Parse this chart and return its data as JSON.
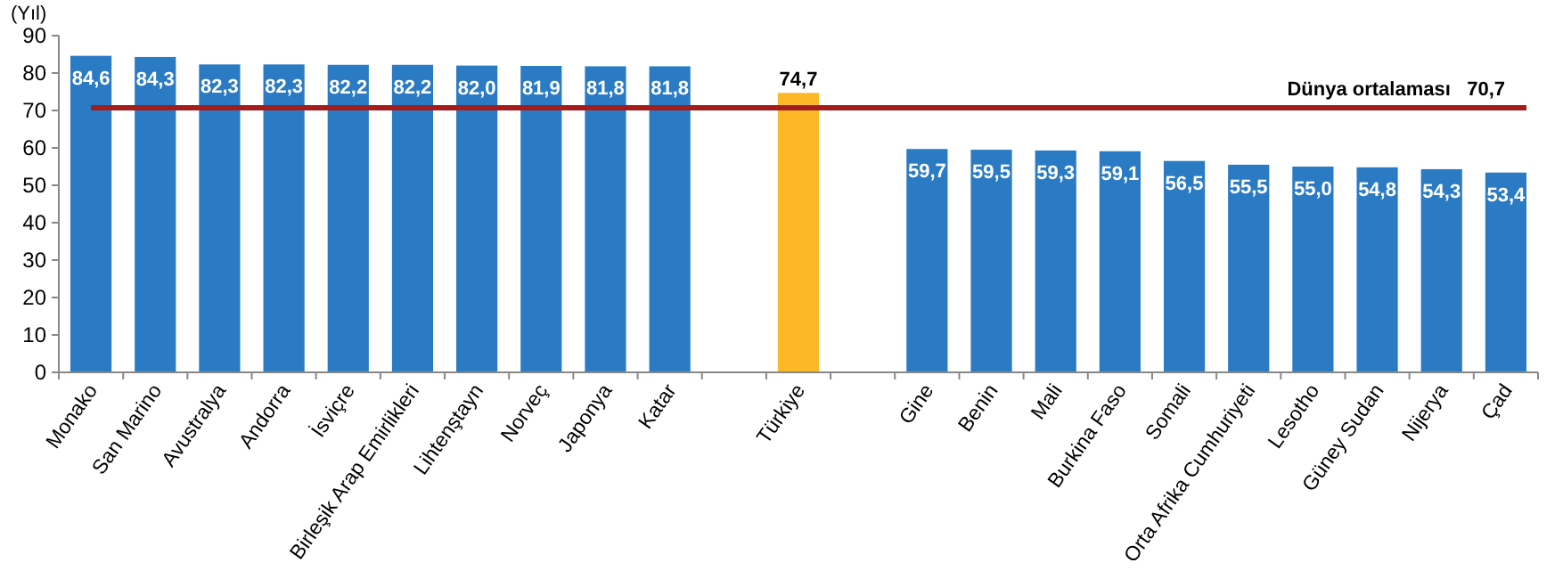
{
  "chart_data": {
    "type": "bar",
    "ylabel": "(Yıl)",
    "categories": [
      "Monako",
      "San Marino",
      "Avustralya",
      "Andorra",
      "İsviçre",
      "Birleşik Arap Emirlikleri",
      "Lihtenştayn",
      "Norveç",
      "Japonya",
      "Katar",
      null,
      "Türkiye",
      null,
      "Gine",
      "Benin",
      "Mali",
      "Burkina Faso",
      "Somali",
      "Orta Afrika Cumhuriyeti",
      "Lesotho",
      "Güney Sudan",
      "Nijerya",
      "Çad"
    ],
    "values": [
      84.6,
      84.3,
      82.3,
      82.3,
      82.2,
      82.2,
      82.0,
      81.9,
      81.8,
      81.8,
      null,
      74.7,
      null,
      59.7,
      59.5,
      59.3,
      59.1,
      56.5,
      55.5,
      55.0,
      54.8,
      54.3,
      53.4
    ],
    "value_labels": [
      "84,6",
      "84,3",
      "82,3",
      "82,3",
      "82,2",
      "82,2",
      "82,0",
      "81,9",
      "81,8",
      "81,8",
      null,
      "74,7",
      null,
      "59,7",
      "59,5",
      "59,3",
      "59,1",
      "56,5",
      "55,5",
      "55,0",
      "54,8",
      "54,3",
      "53,4"
    ],
    "colors": [
      "#2b7bc4",
      "#2b7bc4",
      "#2b7bc4",
      "#2b7bc4",
      "#2b7bc4",
      "#2b7bc4",
      "#2b7bc4",
      "#2b7bc4",
      "#2b7bc4",
      "#2b7bc4",
      "#2b7bc4",
      "#fbb827",
      "#2b7bc4",
      "#2b7bc4",
      "#2b7bc4",
      "#2b7bc4",
      "#2b7bc4",
      "#2b7bc4",
      "#2b7bc4",
      "#2b7bc4",
      "#2b7bc4",
      "#2b7bc4",
      "#2b7bc4"
    ],
    "ylim": [
      0,
      90
    ],
    "yticks": [
      0,
      10,
      20,
      30,
      40,
      50,
      60,
      70,
      80,
      90
    ],
    "grid": false,
    "ref_lines": [
      {
        "axis": "y",
        "value": 70.7,
        "label": "Dünya ortalaması   70,7",
        "color": "#a31d1d"
      }
    ]
  }
}
